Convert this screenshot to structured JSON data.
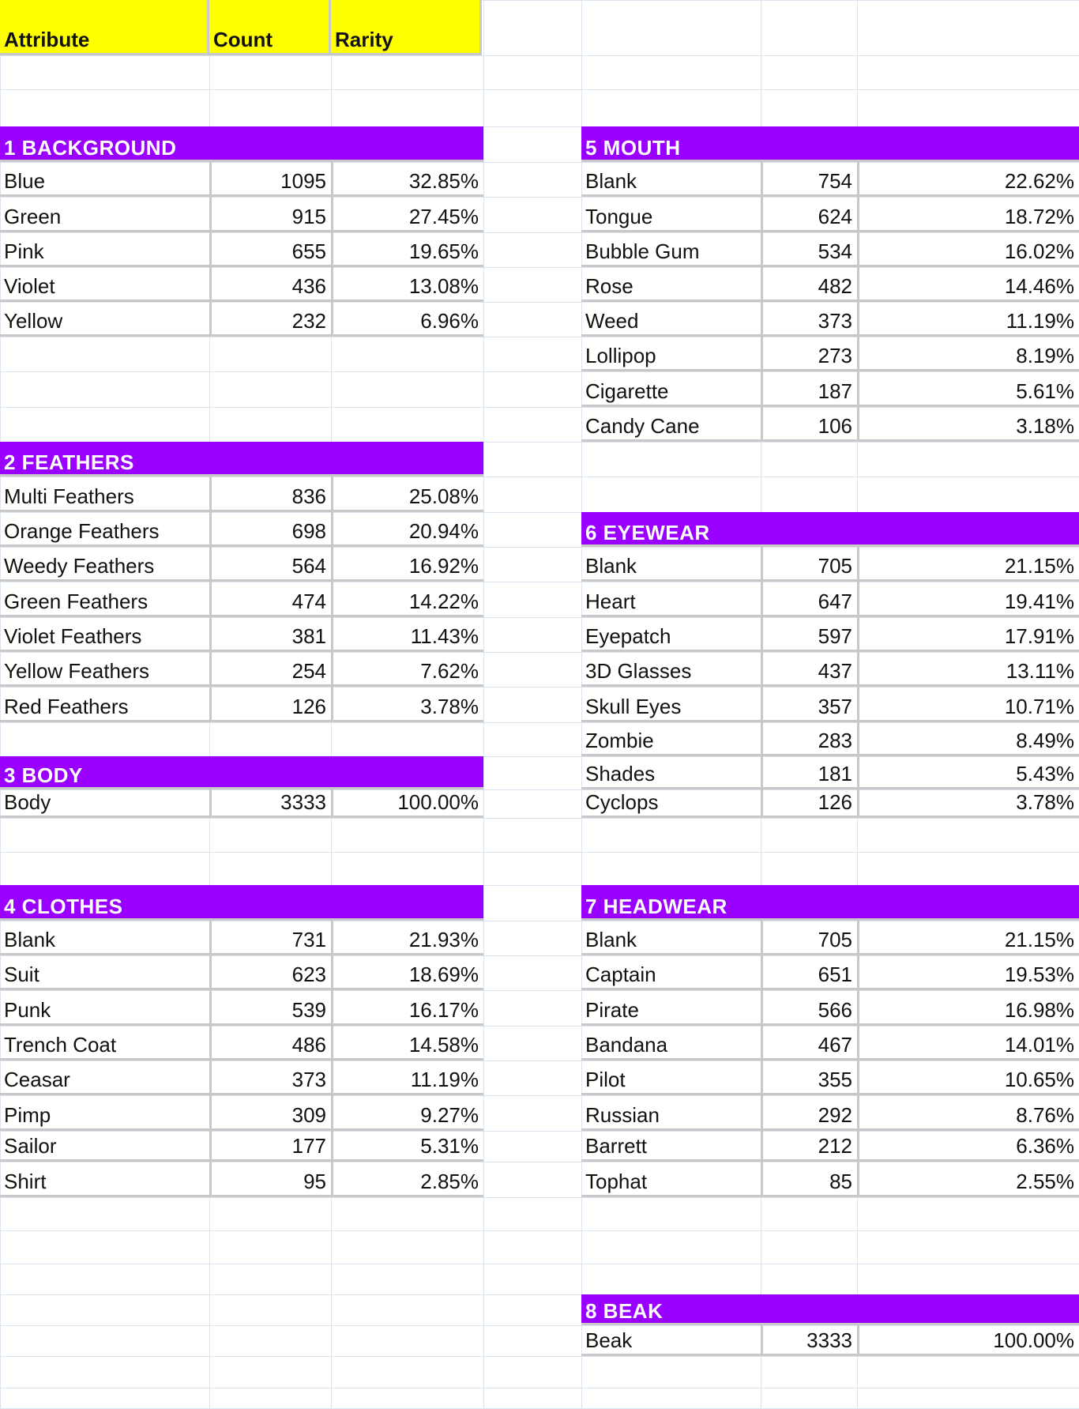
{
  "colors": {
    "header_fill": "#ffff00",
    "section_fill": "#9900ff",
    "section_text": "#ffffff",
    "cell_border": "#c8c8c8",
    "grid_line": "#dbe3ee"
  },
  "header": {
    "attribute": "Attribute",
    "count": "Count",
    "rarity": "Rarity"
  },
  "left_sections": [
    {
      "title": "1 BACKGROUND",
      "rows": [
        {
          "name": "Blue",
          "count": "1095",
          "rarity": "32.85%"
        },
        {
          "name": "Green",
          "count": "915",
          "rarity": "27.45%"
        },
        {
          "name": "Pink",
          "count": "655",
          "rarity": "19.65%"
        },
        {
          "name": "Violet",
          "count": "436",
          "rarity": "13.08%"
        },
        {
          "name": "Yellow",
          "count": "232",
          "rarity": "6.96%"
        }
      ]
    },
    {
      "title": "2 FEATHERS",
      "rows": [
        {
          "name": "Multi Feathers",
          "count": "836",
          "rarity": "25.08%"
        },
        {
          "name": "Orange Feathers",
          "count": "698",
          "rarity": "20.94%"
        },
        {
          "name": "Weedy Feathers",
          "count": "564",
          "rarity": "16.92%"
        },
        {
          "name": "Green Feathers",
          "count": "474",
          "rarity": "14.22%"
        },
        {
          "name": "Violet Feathers",
          "count": "381",
          "rarity": "11.43%"
        },
        {
          "name": "Yellow Feathers",
          "count": "254",
          "rarity": "7.62%"
        },
        {
          "name": "Red Feathers",
          "count": "126",
          "rarity": "3.78%"
        }
      ]
    },
    {
      "title": "3 BODY",
      "rows": [
        {
          "name": "Body",
          "count": "3333",
          "rarity": "100.00%"
        }
      ]
    },
    {
      "title": "4 CLOTHES",
      "rows": [
        {
          "name": "Blank",
          "count": "731",
          "rarity": "21.93%"
        },
        {
          "name": "Suit",
          "count": "623",
          "rarity": "18.69%"
        },
        {
          "name": "Punk",
          "count": "539",
          "rarity": "16.17%"
        },
        {
          "name": "Trench Coat",
          "count": "486",
          "rarity": "14.58%"
        },
        {
          "name": "Ceasar",
          "count": "373",
          "rarity": "11.19%"
        },
        {
          "name": "Pimp",
          "count": "309",
          "rarity": "9.27%"
        },
        {
          "name": "Sailor",
          "count": "177",
          "rarity": "5.31%"
        },
        {
          "name": "Shirt",
          "count": "95",
          "rarity": "2.85%"
        }
      ]
    }
  ],
  "right_sections": [
    {
      "title": "5 MOUTH",
      "rows": [
        {
          "name": "Blank",
          "count": "754",
          "rarity": "22.62%"
        },
        {
          "name": "Tongue",
          "count": "624",
          "rarity": "18.72%"
        },
        {
          "name": "Bubble Gum",
          "count": "534",
          "rarity": "16.02%"
        },
        {
          "name": "Rose",
          "count": "482",
          "rarity": "14.46%"
        },
        {
          "name": "Weed",
          "count": "373",
          "rarity": "11.19%"
        },
        {
          "name": "Lollipop",
          "count": "273",
          "rarity": "8.19%"
        },
        {
          "name": "Cigarette",
          "count": "187",
          "rarity": "5.61%"
        },
        {
          "name": "Candy Cane",
          "count": "106",
          "rarity": "3.18%"
        }
      ]
    },
    {
      "title": "6 EYEWEAR",
      "rows": [
        {
          "name": "Blank",
          "count": "705",
          "rarity": "21.15%"
        },
        {
          "name": "Heart",
          "count": "647",
          "rarity": "19.41%"
        },
        {
          "name": "Eyepatch",
          "count": "597",
          "rarity": "17.91%"
        },
        {
          "name": "3D Glasses",
          "count": "437",
          "rarity": "13.11%"
        },
        {
          "name": "Skull Eyes",
          "count": "357",
          "rarity": "10.71%"
        },
        {
          "name": "Zombie",
          "count": "283",
          "rarity": "8.49%"
        },
        {
          "name": "Shades",
          "count": "181",
          "rarity": "5.43%"
        },
        {
          "name": "Cyclops",
          "count": "126",
          "rarity": "3.78%"
        }
      ]
    },
    {
      "title": "7 HEADWEAR",
      "rows": [
        {
          "name": "Blank",
          "count": "705",
          "rarity": "21.15%"
        },
        {
          "name": "Captain",
          "count": "651",
          "rarity": "19.53%"
        },
        {
          "name": "Pirate",
          "count": "566",
          "rarity": "16.98%"
        },
        {
          "name": "Bandana",
          "count": "467",
          "rarity": "14.01%"
        },
        {
          "name": "Pilot",
          "count": "355",
          "rarity": "10.65%"
        },
        {
          "name": "Russian",
          "count": "292",
          "rarity": "8.76%"
        },
        {
          "name": "Barrett",
          "count": "212",
          "rarity": "6.36%"
        },
        {
          "name": "Tophat",
          "count": "85",
          "rarity": "2.55%"
        }
      ]
    },
    {
      "title": "8 BEAK",
      "rows": [
        {
          "name": "Beak",
          "count": "3333",
          "rarity": "100.00%"
        }
      ]
    }
  ]
}
